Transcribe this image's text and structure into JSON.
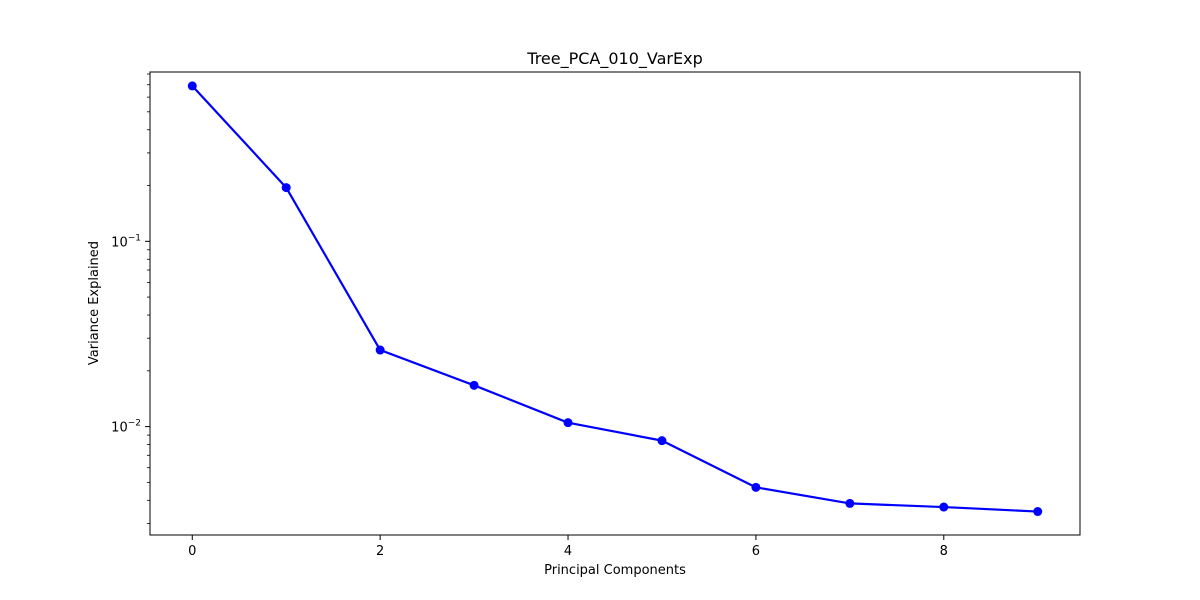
{
  "chart_data": {
    "type": "line",
    "title": "Tree_PCA_010_VarExp",
    "xlabel": "Principal Components",
    "ylabel": "Variance Explained",
    "yscale": "log",
    "x": [
      0,
      1,
      2,
      3,
      4,
      5,
      6,
      7,
      8,
      9
    ],
    "xlim": [
      -0.45,
      9.45
    ],
    "ylim": [
      0.0026,
      0.82
    ],
    "xticks": [
      {
        "value": 0,
        "label": "0"
      },
      {
        "value": 2,
        "label": "2"
      },
      {
        "value": 4,
        "label": "4"
      },
      {
        "value": 6,
        "label": "6"
      },
      {
        "value": 8,
        "label": "8"
      }
    ],
    "yticks_major": [
      {
        "value": 0.01,
        "base": "10",
        "exp": "−2"
      },
      {
        "value": 0.1,
        "base": "10",
        "exp": "−1"
      }
    ],
    "series": [
      {
        "color": "#0000ff",
        "marker": "circle",
        "values": [
          0.69,
          0.195,
          0.0259,
          0.0167,
          0.0105,
          0.0084,
          0.0047,
          0.00385,
          0.00368,
          0.00348
        ]
      }
    ],
    "grid": false,
    "legend": "none"
  }
}
